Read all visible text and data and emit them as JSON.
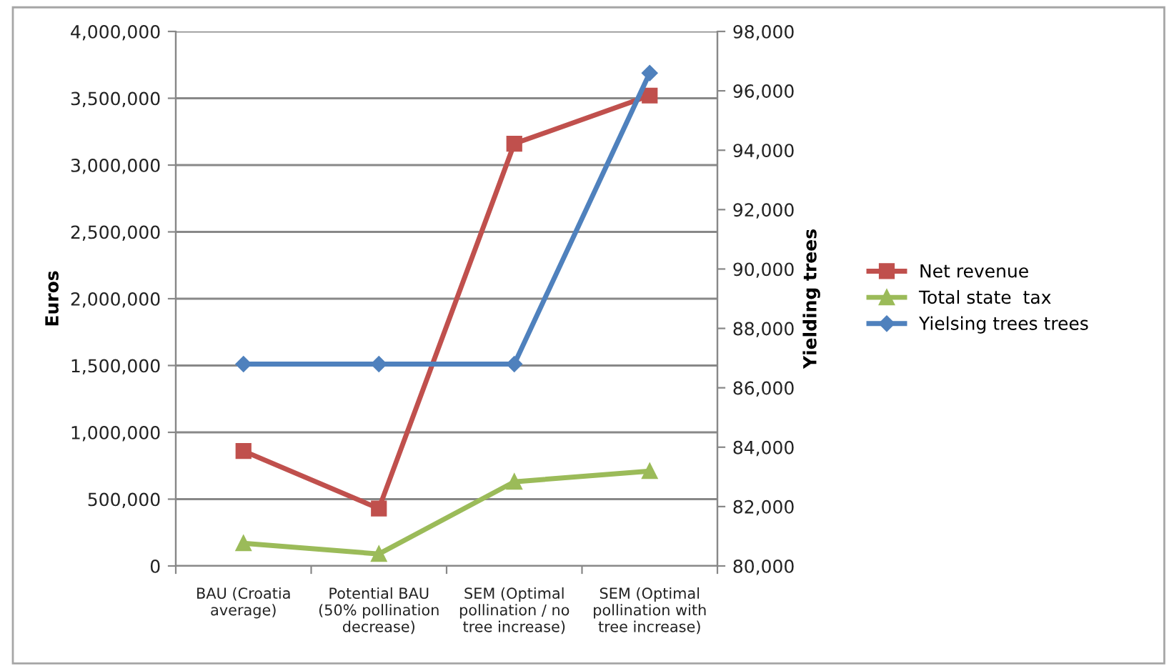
{
  "chart_data": {
    "type": "line",
    "ylabel": "Euros",
    "y2label": "Yielding trees",
    "categories": [
      "BAU (Croatia\naverage)",
      "Potential BAU\n(50% pollination\ndecrease)",
      "SEM (Optimal\npollination / no\ntree increase)",
      "SEM (Optimal\npollination with\ntree increase)"
    ],
    "series": [
      {
        "name": "Net revenue",
        "color": "#c0504d",
        "marker": "square",
        "values": [
          860000,
          430000,
          3160000,
          3520000
        ]
      },
      {
        "name": "Total state  tax",
        "color": "#9bbb59",
        "marker": "triangle",
        "values": [
          170000,
          90000,
          630000,
          710000
        ]
      },
      {
        "name": "Yielsing trees trees",
        "color": "#4f81bd",
        "marker": "diamond",
        "axis": "y2",
        "values": [
          86800,
          86800,
          86800,
          96600
        ]
      }
    ],
    "ylim": [
      0,
      4000000
    ],
    "yticks": [
      {
        "value": 0,
        "label": "0"
      },
      {
        "value": 500000,
        "label": "500,000"
      },
      {
        "value": 1000000,
        "label": "1,000,000"
      },
      {
        "value": 1500000,
        "label": "1,500,000"
      },
      {
        "value": 2000000,
        "label": "2,000,000"
      },
      {
        "value": 2500000,
        "label": "2,500,000"
      },
      {
        "value": 3000000,
        "label": "3,000,000"
      },
      {
        "value": 3500000,
        "label": "3,500,000"
      },
      {
        "value": 4000000,
        "label": "4,000,000"
      }
    ],
    "y2lim": [
      80000,
      98000
    ],
    "y2ticks": [
      {
        "value": 80000,
        "label": "80,000"
      },
      {
        "value": 82000,
        "label": "82,000"
      },
      {
        "value": 84000,
        "label": "84,000"
      },
      {
        "value": 86000,
        "label": "86,000"
      },
      {
        "value": 88000,
        "label": "88,000"
      },
      {
        "value": 90000,
        "label": "90,000"
      },
      {
        "value": 92000,
        "label": "92,000"
      },
      {
        "value": 94000,
        "label": "94,000"
      },
      {
        "value": 96000,
        "label": "96,000"
      },
      {
        "value": 98000,
        "label": "98,000"
      }
    ],
    "grid": "y",
    "legend": "right",
    "line_style": "solid"
  }
}
